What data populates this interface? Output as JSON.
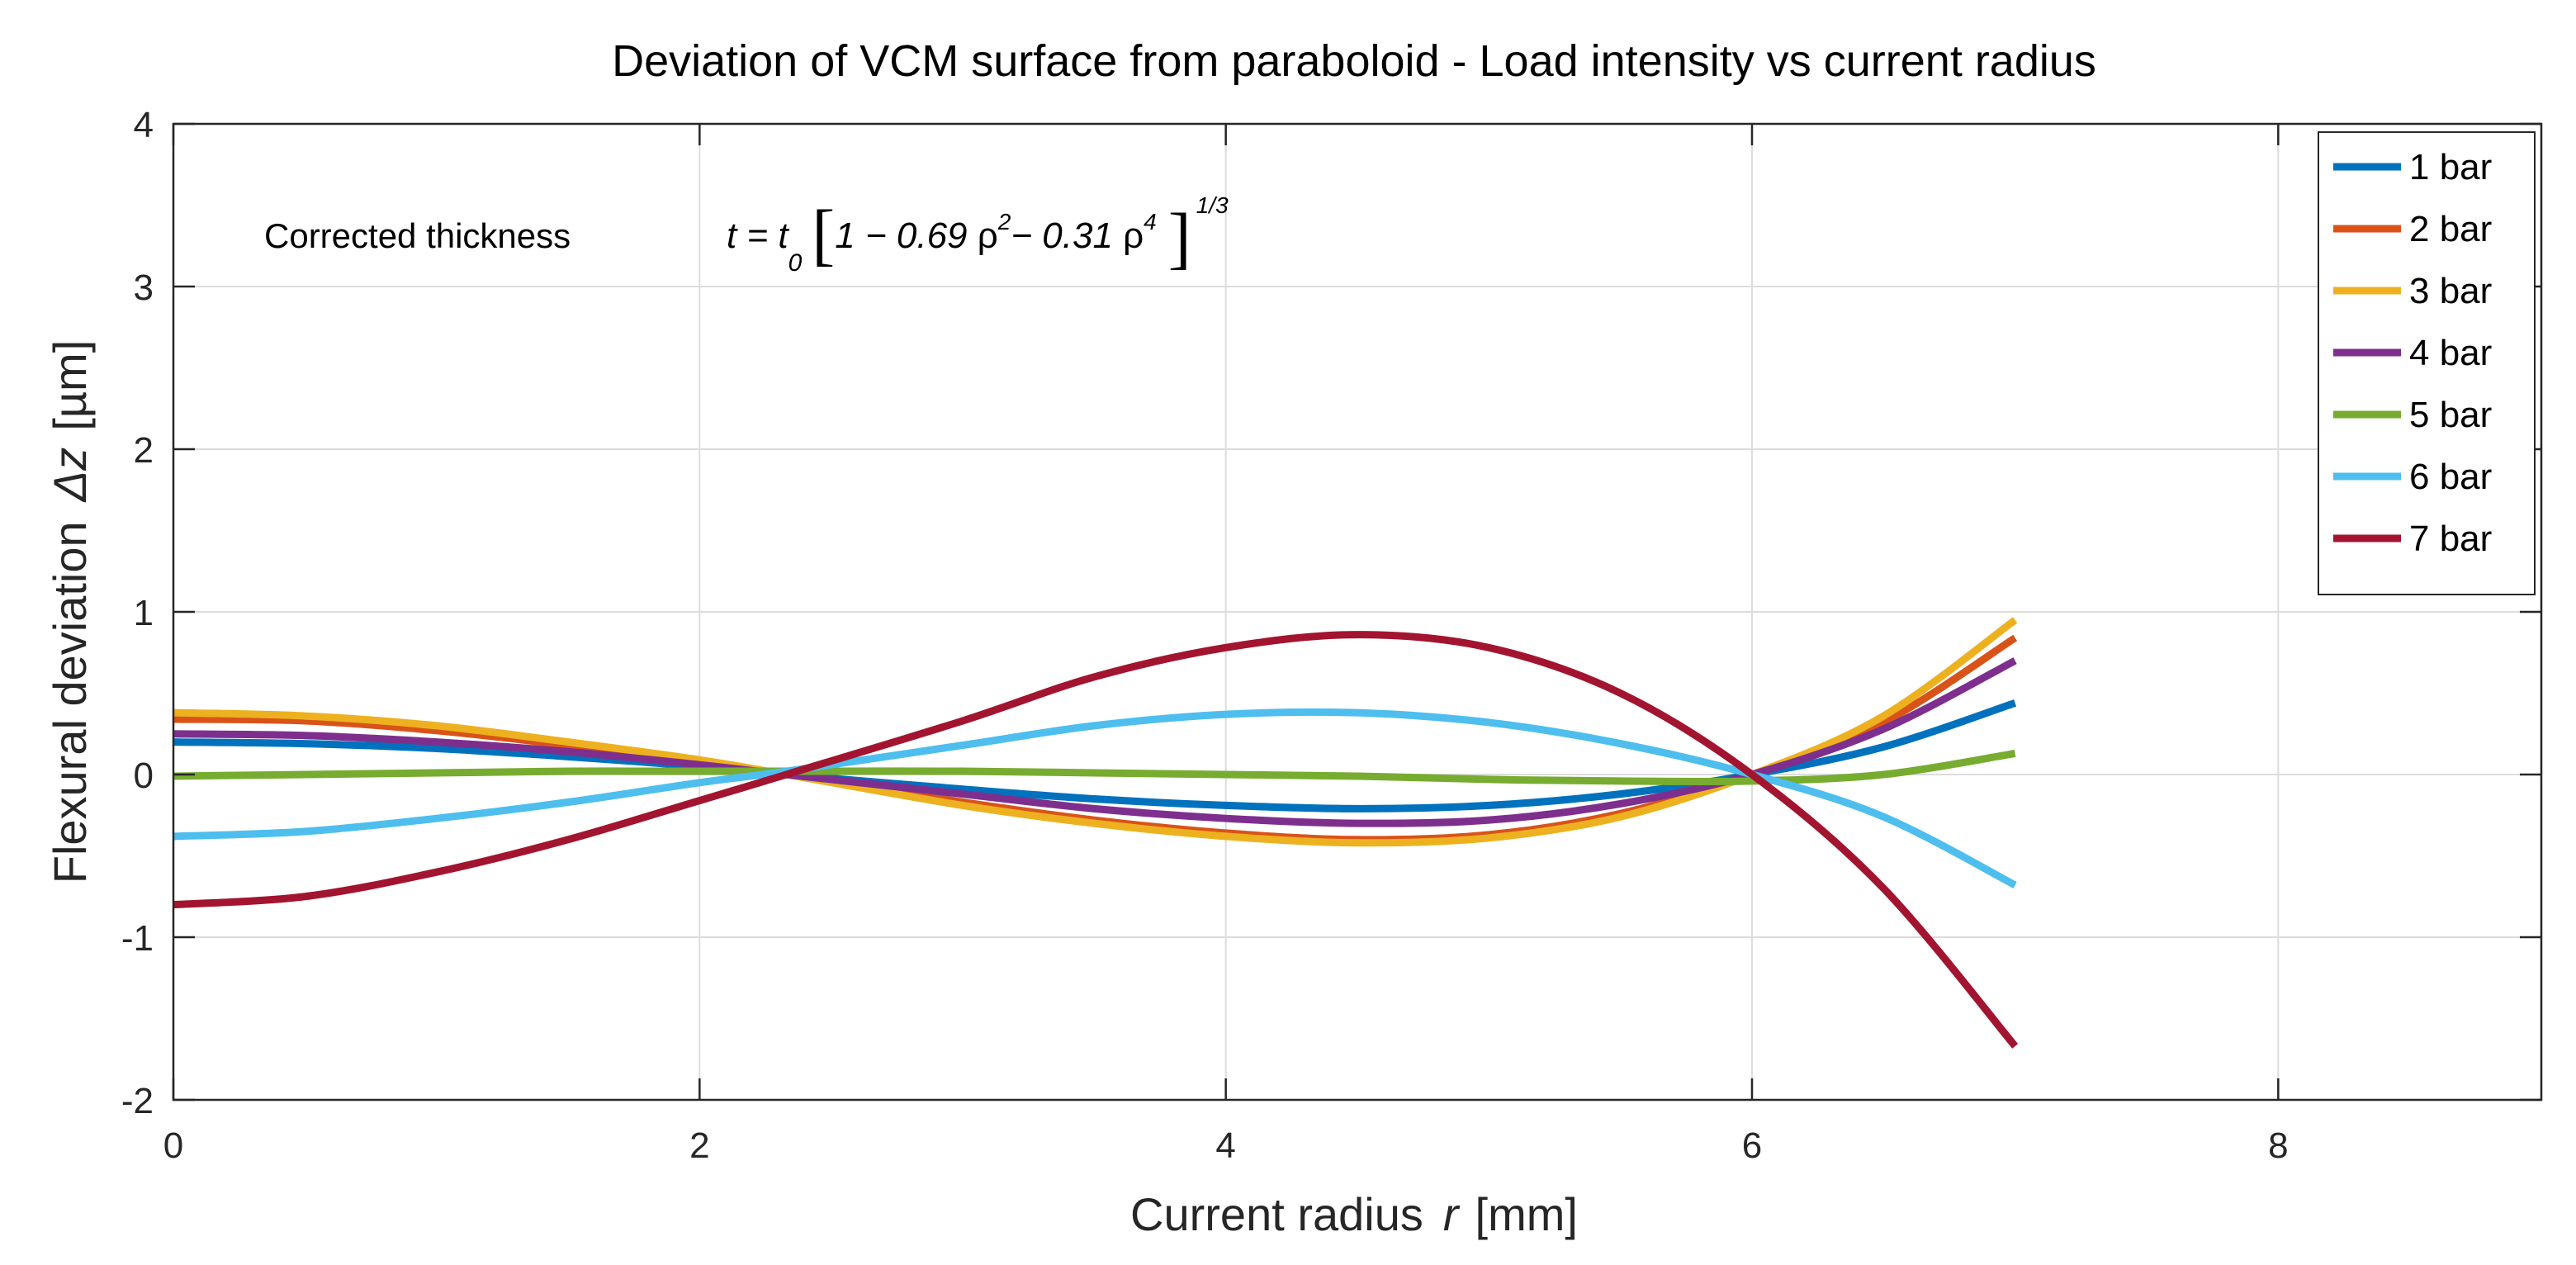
{
  "chart_data": {
    "type": "line",
    "title": "Deviation of VCM surface from paraboloid  -  Load intensity vs current radius",
    "xlabel_text": "Current radius",
    "xlabel_var": "r",
    "xlabel_unit": "[mm]",
    "ylabel_text": "Flexural deviation",
    "ylabel_var": "Δz",
    "ylabel_unit": "[µm]",
    "xlim": [
      0,
      9
    ],
    "ylim": [
      -2,
      4
    ],
    "xticks": [
      0,
      2,
      4,
      6,
      8
    ],
    "yticks": [
      -2,
      -1,
      0,
      1,
      2,
      3,
      4
    ],
    "grid": true,
    "legend_location": "top-right",
    "annotation": {
      "prefix": "Corrected thickness",
      "lhs": "t = t",
      "sub0": "0",
      "body1": "1 − 0.69 ",
      "rho1": "ρ",
      "exp1": "2",
      "body2": "− 0.31 ",
      "rho2": "ρ",
      "exp2": "4",
      "exp_outer": "1/3"
    },
    "series": [
      {
        "name": "1 bar",
        "color": "#0072BD",
        "points": [
          [
            0,
            0.2
          ],
          [
            0.5,
            0.19
          ],
          [
            1,
            0.16
          ],
          [
            1.5,
            0.11
          ],
          [
            2,
            0.05
          ],
          [
            2.33,
            0.0
          ],
          [
            3,
            -0.09
          ],
          [
            3.5,
            -0.15
          ],
          [
            4,
            -0.19
          ],
          [
            4.5,
            -0.21
          ],
          [
            5,
            -0.19
          ],
          [
            5.5,
            -0.12
          ],
          [
            6,
            0.0
          ],
          [
            6.5,
            0.17
          ],
          [
            7,
            0.44
          ]
        ]
      },
      {
        "name": "2 bar",
        "color": "#D95319",
        "points": [
          [
            0,
            0.34
          ],
          [
            0.5,
            0.33
          ],
          [
            1,
            0.27
          ],
          [
            1.5,
            0.18
          ],
          [
            2,
            0.08
          ],
          [
            2.33,
            0.0
          ],
          [
            3,
            -0.17
          ],
          [
            3.5,
            -0.28
          ],
          [
            4,
            -0.36
          ],
          [
            4.5,
            -0.4
          ],
          [
            5,
            -0.37
          ],
          [
            5.5,
            -0.24
          ],
          [
            6,
            0.0
          ],
          [
            6.5,
            0.32
          ],
          [
            7,
            0.84
          ]
        ]
      },
      {
        "name": "3 bar",
        "color": "#EDB120",
        "points": [
          [
            0,
            0.38
          ],
          [
            0.5,
            0.36
          ],
          [
            1,
            0.3
          ],
          [
            1.5,
            0.2
          ],
          [
            2,
            0.09
          ],
          [
            2.33,
            0.0
          ],
          [
            3,
            -0.19
          ],
          [
            3.5,
            -0.3
          ],
          [
            4,
            -0.38
          ],
          [
            4.5,
            -0.42
          ],
          [
            5,
            -0.39
          ],
          [
            5.5,
            -0.26
          ],
          [
            6,
            0.0
          ],
          [
            6.5,
            0.36
          ],
          [
            7,
            0.95
          ]
        ]
      },
      {
        "name": "4 bar",
        "color": "#7E2F8E",
        "points": [
          [
            0,
            0.25
          ],
          [
            0.5,
            0.24
          ],
          [
            1,
            0.2
          ],
          [
            1.5,
            0.14
          ],
          [
            2,
            0.06
          ],
          [
            2.33,
            0.0
          ],
          [
            3,
            -0.12
          ],
          [
            3.5,
            -0.21
          ],
          [
            4,
            -0.27
          ],
          [
            4.5,
            -0.3
          ],
          [
            5,
            -0.28
          ],
          [
            5.5,
            -0.18
          ],
          [
            6,
            0.0
          ],
          [
            6.5,
            0.28
          ],
          [
            7,
            0.7
          ]
        ]
      },
      {
        "name": "5 bar",
        "color": "#77AC30",
        "points": [
          [
            0,
            -0.01
          ],
          [
            0.5,
            0.0
          ],
          [
            1,
            0.01
          ],
          [
            1.5,
            0.02
          ],
          [
            2,
            0.02
          ],
          [
            2.33,
            0.02
          ],
          [
            3,
            0.02
          ],
          [
            3.5,
            0.01
          ],
          [
            4,
            0.0
          ],
          [
            4.5,
            -0.01
          ],
          [
            5,
            -0.03
          ],
          [
            5.5,
            -0.04
          ],
          [
            6,
            -0.04
          ],
          [
            6.5,
            0.0
          ],
          [
            7,
            0.13
          ]
        ]
      },
      {
        "name": "6 bar",
        "color": "#4DBEEE",
        "points": [
          [
            0,
            -0.38
          ],
          [
            0.5,
            -0.35
          ],
          [
            1,
            -0.27
          ],
          [
            1.5,
            -0.17
          ],
          [
            2,
            -0.05
          ],
          [
            2.33,
            0.02
          ],
          [
            3,
            0.18
          ],
          [
            3.5,
            0.3
          ],
          [
            4,
            0.37
          ],
          [
            4.5,
            0.38
          ],
          [
            5,
            0.32
          ],
          [
            5.5,
            0.19
          ],
          [
            6,
            0.0
          ],
          [
            6.5,
            -0.26
          ],
          [
            7,
            -0.68
          ]
        ]
      },
      {
        "name": "7 bar",
        "color": "#A2142F",
        "points": [
          [
            0,
            -0.8
          ],
          [
            0.5,
            -0.75
          ],
          [
            1,
            -0.6
          ],
          [
            1.5,
            -0.4
          ],
          [
            2,
            -0.16
          ],
          [
            2.33,
            0.0
          ],
          [
            3,
            0.33
          ],
          [
            3.5,
            0.6
          ],
          [
            4,
            0.78
          ],
          [
            4.5,
            0.86
          ],
          [
            5,
            0.78
          ],
          [
            5.5,
            0.5
          ],
          [
            6,
            0.0
          ],
          [
            6.5,
            -0.7
          ],
          [
            7,
            -1.67
          ]
        ]
      }
    ]
  }
}
